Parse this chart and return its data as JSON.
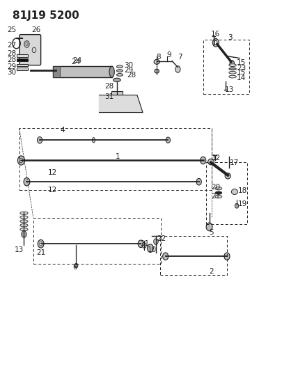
{
  "title": "81J19 5200",
  "bg_color": "#ffffff",
  "line_color": "#222222",
  "title_fontsize": 11,
  "label_fontsize": 7.5,
  "fig_width": 4.06,
  "fig_height": 5.33,
  "dpi": 100
}
